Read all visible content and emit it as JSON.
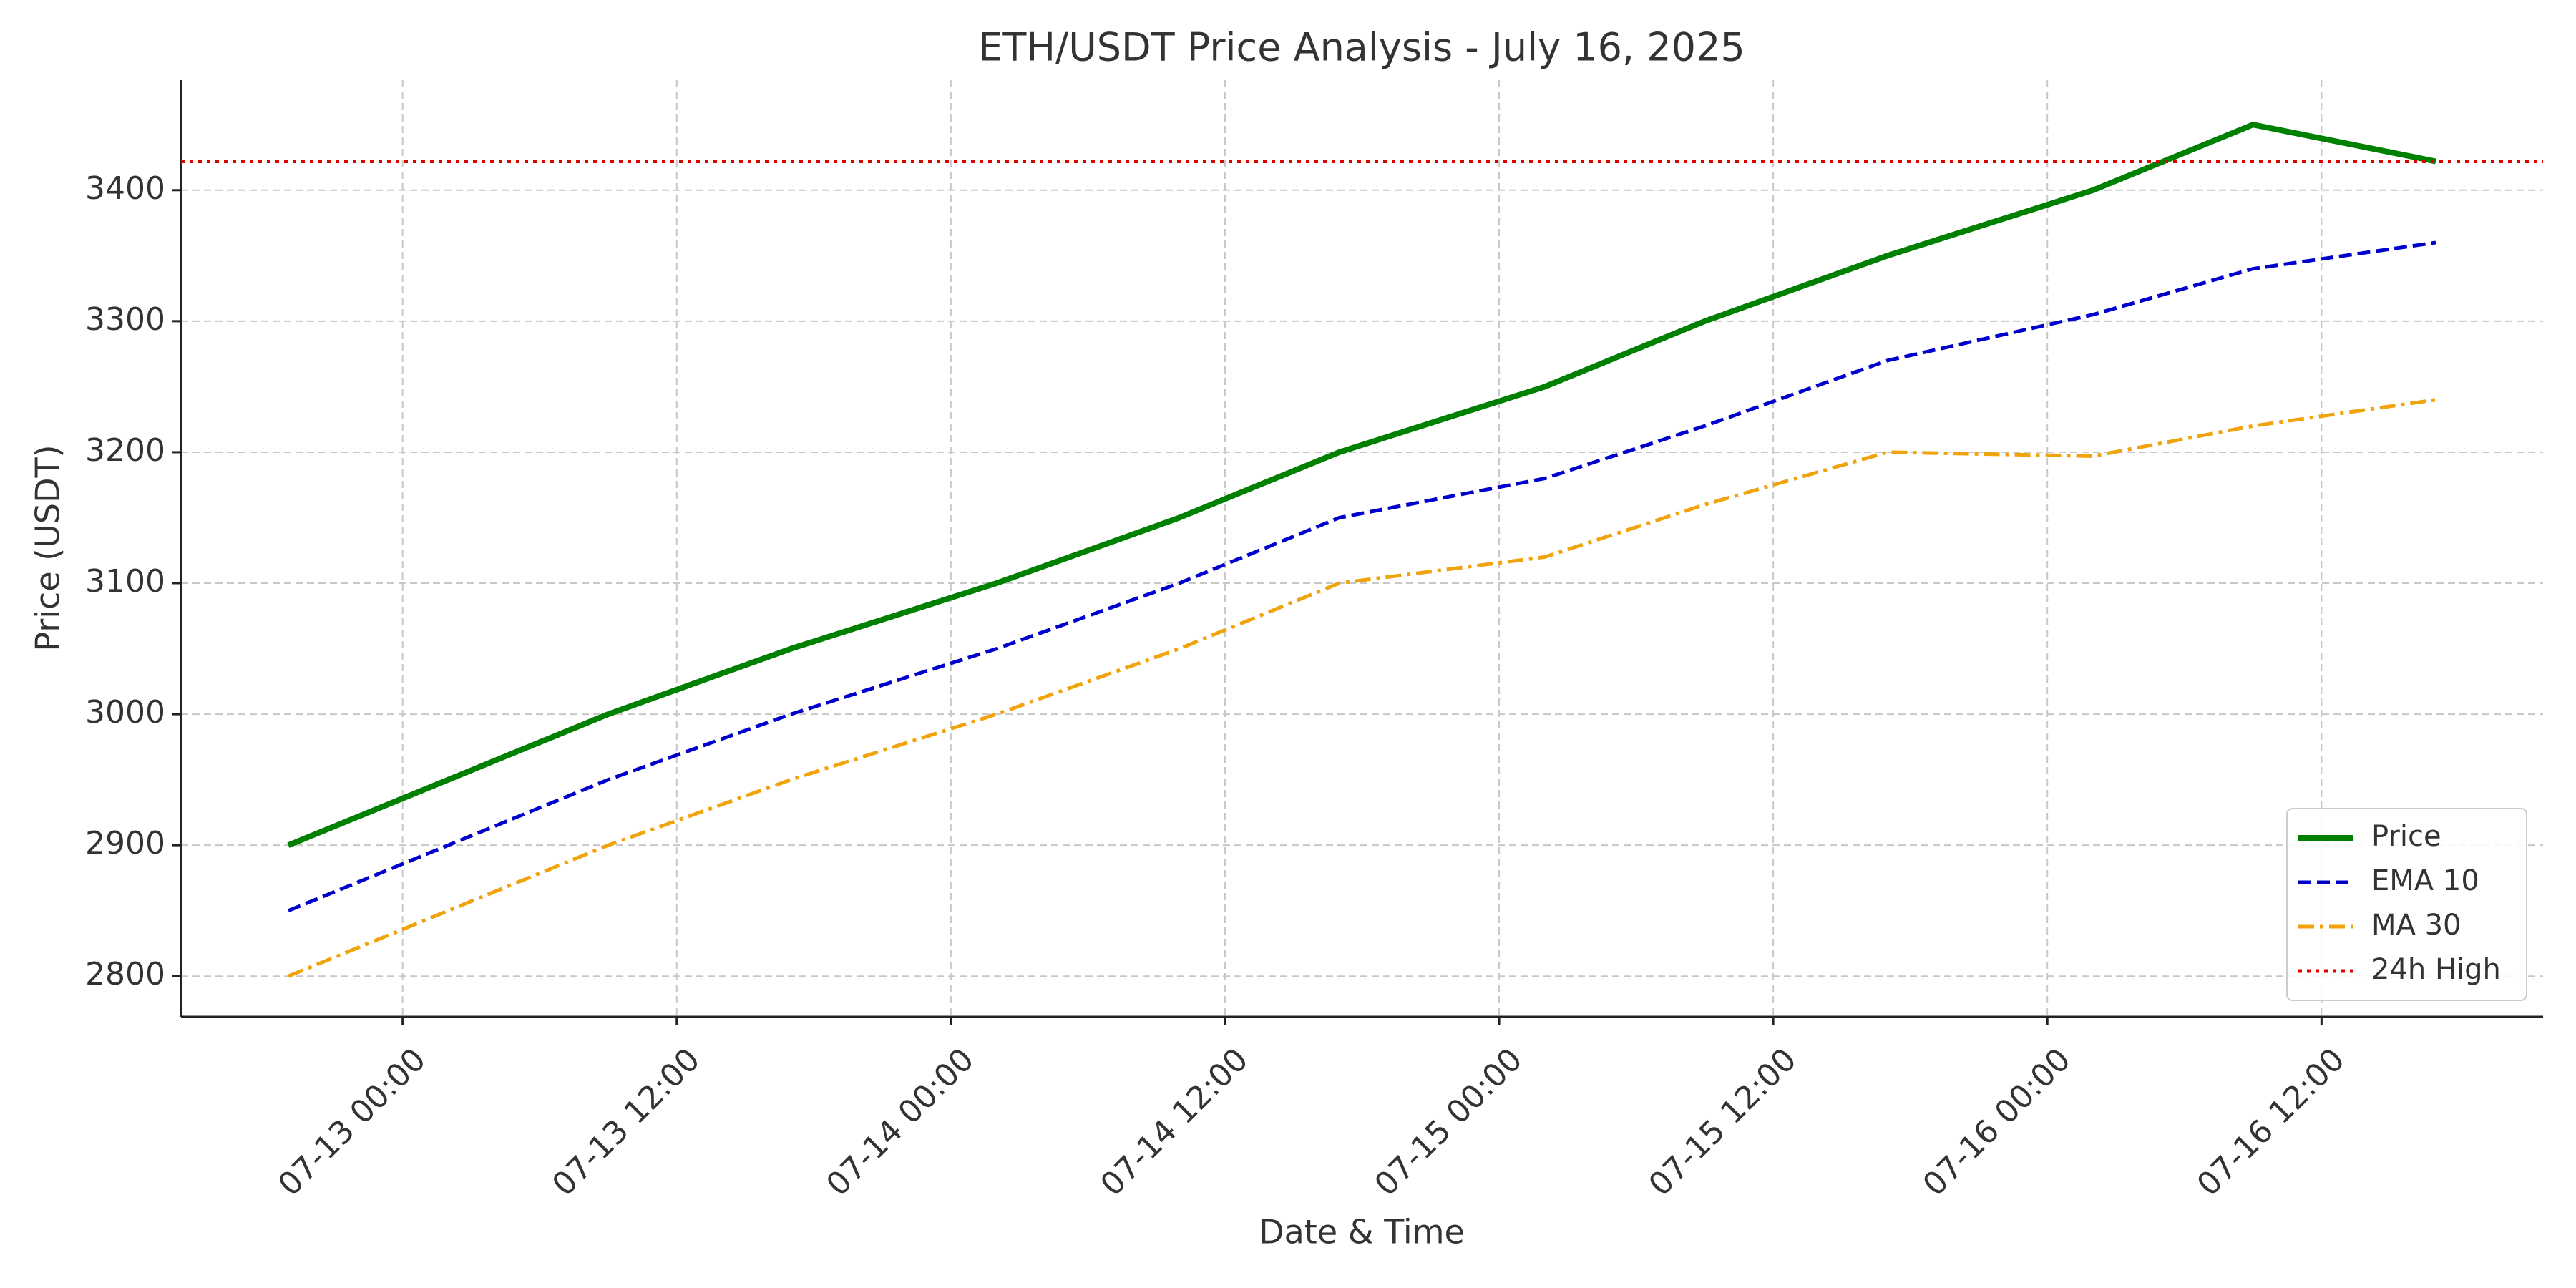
{
  "chart_data": {
    "type": "line",
    "title": "ETH/USDT Price Analysis - July 16, 2025",
    "xlabel": "Date & Time",
    "ylabel": "Price (USDT)",
    "x": [
      "07-12 19:00",
      "07-13 09:00",
      "07-13 17:00",
      "07-14 02:00",
      "07-14 10:00",
      "07-14 17:00",
      "07-15 02:00",
      "07-15 09:00",
      "07-15 17:00",
      "07-16 02:00",
      "07-16 09:00",
      "07-16 17:00"
    ],
    "series": [
      {
        "name": "Price",
        "color": "#008000",
        "dash": "solid",
        "values": [
          2900,
          3000,
          3050,
          3100,
          3150,
          3200,
          3250,
          3300,
          3350,
          3400,
          3450,
          3422
        ]
      },
      {
        "name": "EMA 10",
        "color": "#0000cd",
        "dash": "dashed",
        "values": [
          2850,
          2950,
          3000,
          3050,
          3100,
          3150,
          3180,
          3220,
          3270,
          3305,
          3340,
          3360
        ]
      },
      {
        "name": "MA 30",
        "color": "#f0a30a",
        "dash": "dashdot",
        "values": [
          2800,
          2900,
          2950,
          3000,
          3050,
          3100,
          3120,
          3160,
          3200,
          3197,
          3220,
          3240
        ]
      }
    ],
    "hlines": [
      {
        "name": "24h High",
        "color": "#e00000",
        "dash": "dotted",
        "value": 3422
      }
    ],
    "xlim": [
      "07-12 14:18",
      "07-16 21:42"
    ],
    "xticks": [
      "07-13 00:00",
      "07-13 12:00",
      "07-14 00:00",
      "07-14 12:00",
      "07-15 00:00",
      "07-15 12:00",
      "07-16 00:00",
      "07-16 12:00"
    ],
    "ylim": [
      2769,
      3484
    ],
    "yticks": [
      2800,
      2900,
      3000,
      3100,
      3200,
      3300,
      3400
    ],
    "grid": true,
    "legend": "lower right"
  }
}
